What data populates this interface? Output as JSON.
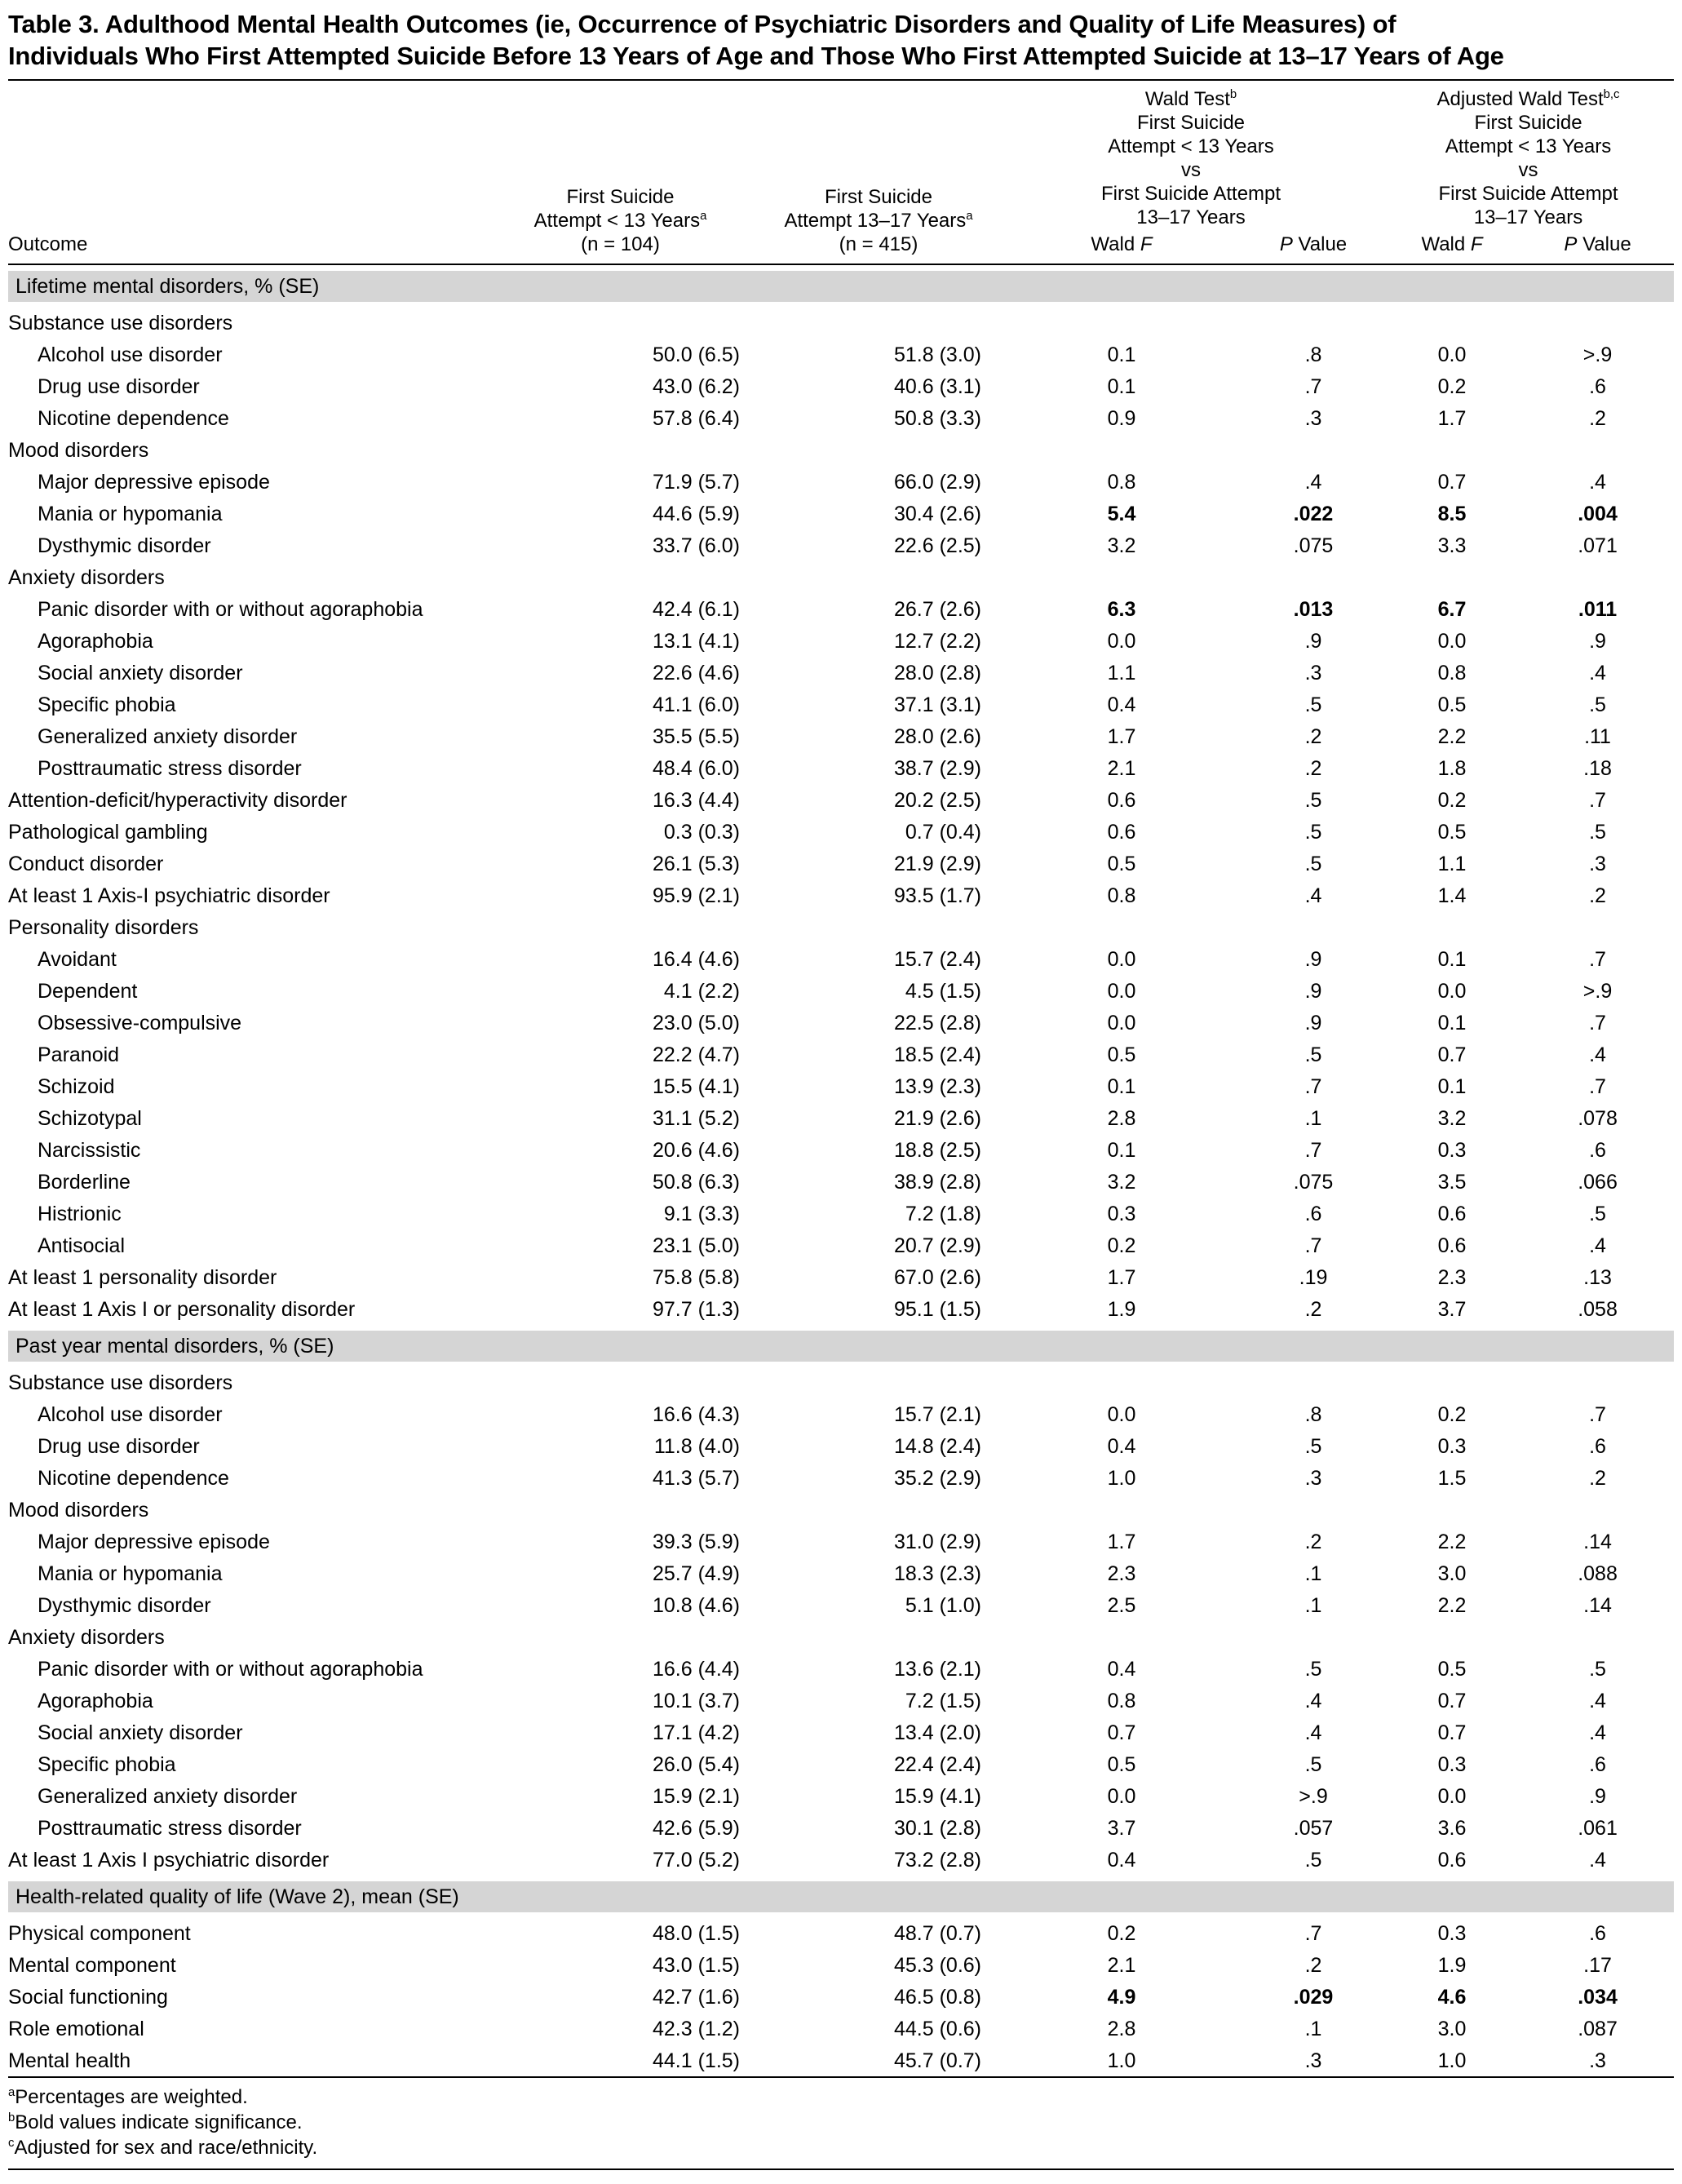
{
  "title": {
    "line1": "Table 3. Adulthood Mental Health Outcomes (ie, Occurrence of Psychiatric Disorders and Quality of Life Measures) of",
    "line2": "Individuals Who First Attempted Suicide Before 13 Years of Age and Those Who First Attempted Suicide at 13–17 Years of Age"
  },
  "header": {
    "outcome": "Outcome",
    "col_lt13": {
      "l1": "First Suicide",
      "l2": "Attempt < 13 Years",
      "sup": "a",
      "l3": "(n = 104)"
    },
    "col_1317": {
      "l1": "First Suicide",
      "l2": "Attempt 13–17 Years",
      "sup": "a",
      "l3": "(n = 415)"
    },
    "wald": {
      "title": "Wald Test",
      "sup": "b",
      "l1": "First Suicide",
      "l2": "Attempt < 13 Years",
      "l3": "vs",
      "l4": "First Suicide Attempt",
      "l5": "13–17 Years"
    },
    "adj_wald": {
      "title": "Adjusted Wald Test",
      "sup": "b,c",
      "l1": "First Suicide",
      "l2": "Attempt < 13 Years",
      "l3": "vs",
      "l4": "First Suicide Attempt",
      "l5": "13–17 Years"
    },
    "stats": {
      "wald": "Wald",
      "f": "F",
      "p": "P",
      "value": "Value"
    }
  },
  "rows": [
    {
      "t": "section",
      "label": "Lifetime mental disorders, % (SE)"
    },
    {
      "t": "sub",
      "label": "Substance use disorders"
    },
    {
      "t": "row",
      "indent": 1,
      "label": "Alcohol use disorder",
      "v": [
        "50.0 (6.5)",
        "51.8 (3.0)",
        "0.1",
        ".8",
        "0.0",
        ">.9"
      ]
    },
    {
      "t": "row",
      "indent": 1,
      "label": "Drug use disorder",
      "v": [
        "43.0 (6.2)",
        "40.6 (3.1)",
        "0.1",
        ".7",
        "0.2",
        ".6"
      ]
    },
    {
      "t": "row",
      "indent": 1,
      "label": "Nicotine dependence",
      "v": [
        "57.8 (6.4)",
        "50.8 (3.3)",
        "0.9",
        ".3",
        "1.7",
        ".2"
      ]
    },
    {
      "t": "sub",
      "label": "Mood disorders"
    },
    {
      "t": "row",
      "indent": 1,
      "label": "Major depressive episode",
      "v": [
        "71.9 (5.7)",
        "66.0 (2.9)",
        "0.8",
        ".4",
        "0.7",
        ".4"
      ]
    },
    {
      "t": "row",
      "indent": 1,
      "bold": true,
      "label": "Mania or hypomania",
      "v": [
        "44.6 (5.9)",
        "30.4 (2.6)",
        "5.4",
        ".022",
        "8.5",
        ".004"
      ]
    },
    {
      "t": "row",
      "indent": 1,
      "label": "Dysthymic disorder",
      "v": [
        "33.7 (6.0)",
        "22.6 (2.5)",
        "3.2",
        ".075",
        "3.3",
        ".071"
      ]
    },
    {
      "t": "sub",
      "label": "Anxiety disorders"
    },
    {
      "t": "row",
      "indent": 1,
      "bold": true,
      "label": "Panic disorder with or without agoraphobia",
      "v": [
        "42.4 (6.1)",
        "26.7 (2.6)",
        "6.3",
        ".013",
        "6.7",
        ".011"
      ]
    },
    {
      "t": "row",
      "indent": 1,
      "label": "Agoraphobia",
      "v": [
        "13.1 (4.1)",
        "12.7 (2.2)",
        "0.0",
        ".9",
        "0.0",
        ".9"
      ]
    },
    {
      "t": "row",
      "indent": 1,
      "label": "Social anxiety disorder",
      "v": [
        "22.6 (4.6)",
        "28.0 (2.8)",
        "1.1",
        ".3",
        "0.8",
        ".4"
      ]
    },
    {
      "t": "row",
      "indent": 1,
      "label": "Specific phobia",
      "v": [
        "41.1 (6.0)",
        "37.1 (3.1)",
        "0.4",
        ".5",
        "0.5",
        ".5"
      ]
    },
    {
      "t": "row",
      "indent": 1,
      "label": "Generalized anxiety disorder",
      "v": [
        "35.5 (5.5)",
        "28.0 (2.6)",
        "1.7",
        ".2",
        "2.2",
        ".11"
      ]
    },
    {
      "t": "row",
      "indent": 1,
      "label": "Posttraumatic stress disorder",
      "v": [
        "48.4 (6.0)",
        "38.7 (2.9)",
        "2.1",
        ".2",
        "1.8",
        ".18"
      ]
    },
    {
      "t": "row",
      "indent": 0,
      "label": "Attention-deficit/hyperactivity disorder",
      "v": [
        "16.3 (4.4)",
        "20.2 (2.5)",
        "0.6",
        ".5",
        "0.2",
        ".7"
      ]
    },
    {
      "t": "row",
      "indent": 0,
      "label": "Pathological gambling",
      "v": [
        "0.3 (0.3)",
        "0.7 (0.4)",
        "0.6",
        ".5",
        "0.5",
        ".5"
      ]
    },
    {
      "t": "row",
      "indent": 0,
      "label": "Conduct disorder",
      "v": [
        "26.1 (5.3)",
        "21.9 (2.9)",
        "0.5",
        ".5",
        "1.1",
        ".3"
      ]
    },
    {
      "t": "row",
      "indent": 0,
      "label": "At least 1 Axis-I psychiatric disorder",
      "v": [
        "95.9 (2.1)",
        "93.5 (1.7)",
        "0.8",
        ".4",
        "1.4",
        ".2"
      ]
    },
    {
      "t": "sub",
      "label": "Personality disorders"
    },
    {
      "t": "row",
      "indent": 1,
      "label": "Avoidant",
      "v": [
        "16.4 (4.6)",
        "15.7 (2.4)",
        "0.0",
        ".9",
        "0.1",
        ".7"
      ]
    },
    {
      "t": "row",
      "indent": 1,
      "label": "Dependent",
      "v": [
        "4.1 (2.2)",
        "4.5 (1.5)",
        "0.0",
        ".9",
        "0.0",
        ">.9"
      ]
    },
    {
      "t": "row",
      "indent": 1,
      "label": "Obsessive-compulsive",
      "v": [
        "23.0 (5.0)",
        "22.5 (2.8)",
        "0.0",
        ".9",
        "0.1",
        ".7"
      ]
    },
    {
      "t": "row",
      "indent": 1,
      "label": "Paranoid",
      "v": [
        "22.2 (4.7)",
        "18.5 (2.4)",
        "0.5",
        ".5",
        "0.7",
        ".4"
      ]
    },
    {
      "t": "row",
      "indent": 1,
      "label": "Schizoid",
      "v": [
        "15.5 (4.1)",
        "13.9 (2.3)",
        "0.1",
        ".7",
        "0.1",
        ".7"
      ]
    },
    {
      "t": "row",
      "indent": 1,
      "label": "Schizotypal",
      "v": [
        "31.1 (5.2)",
        "21.9 (2.6)",
        "2.8",
        ".1",
        "3.2",
        ".078"
      ]
    },
    {
      "t": "row",
      "indent": 1,
      "label": "Narcissistic",
      "v": [
        "20.6 (4.6)",
        "18.8 (2.5)",
        "0.1",
        ".7",
        "0.3",
        ".6"
      ]
    },
    {
      "t": "row",
      "indent": 1,
      "label": "Borderline",
      "v": [
        "50.8 (6.3)",
        "38.9 (2.8)",
        "3.2",
        ".075",
        "3.5",
        ".066"
      ]
    },
    {
      "t": "row",
      "indent": 1,
      "label": "Histrionic",
      "v": [
        "9.1 (3.3)",
        "7.2 (1.8)",
        "0.3",
        ".6",
        "0.6",
        ".5"
      ]
    },
    {
      "t": "row",
      "indent": 1,
      "label": "Antisocial",
      "v": [
        "23.1 (5.0)",
        "20.7 (2.9)",
        "0.2",
        ".7",
        "0.6",
        ".4"
      ]
    },
    {
      "t": "row",
      "indent": 0,
      "label": "At least 1 personality disorder",
      "v": [
        "75.8 (5.8)",
        "67.0 (2.6)",
        "1.7",
        ".19",
        "2.3",
        ".13"
      ]
    },
    {
      "t": "row",
      "indent": 0,
      "label": "At least 1 Axis I or personality disorder",
      "v": [
        "97.7 (1.3)",
        "95.1 (1.5)",
        "1.9",
        ".2",
        "3.7",
        ".058"
      ]
    },
    {
      "t": "section",
      "label": "Past year mental disorders, % (SE)"
    },
    {
      "t": "sub",
      "label": "Substance use disorders"
    },
    {
      "t": "row",
      "indent": 1,
      "label": "Alcohol use disorder",
      "v": [
        "16.6 (4.3)",
        "15.7 (2.1)",
        "0.0",
        ".8",
        "0.2",
        ".7"
      ]
    },
    {
      "t": "row",
      "indent": 1,
      "label": "Drug use disorder",
      "v": [
        "11.8 (4.0)",
        "14.8 (2.4)",
        "0.4",
        ".5",
        "0.3",
        ".6"
      ]
    },
    {
      "t": "row",
      "indent": 1,
      "label": "Nicotine dependence",
      "v": [
        "41.3 (5.7)",
        "35.2 (2.9)",
        "1.0",
        ".3",
        "1.5",
        ".2"
      ]
    },
    {
      "t": "sub",
      "label": "Mood disorders"
    },
    {
      "t": "row",
      "indent": 1,
      "label": "Major depressive episode",
      "v": [
        "39.3 (5.9)",
        "31.0 (2.9)",
        "1.7",
        ".2",
        "2.2",
        ".14"
      ]
    },
    {
      "t": "row",
      "indent": 1,
      "label": "Mania or hypomania",
      "v": [
        "25.7 (4.9)",
        "18.3 (2.3)",
        "2.3",
        ".1",
        "3.0",
        ".088"
      ]
    },
    {
      "t": "row",
      "indent": 1,
      "label": "Dysthymic disorder",
      "v": [
        "10.8 (4.6)",
        "5.1 (1.0)",
        "2.5",
        ".1",
        "2.2",
        ".14"
      ]
    },
    {
      "t": "sub",
      "label": "Anxiety disorders"
    },
    {
      "t": "row",
      "indent": 1,
      "label": "Panic disorder with or without agoraphobia",
      "v": [
        "16.6 (4.4)",
        "13.6 (2.1)",
        "0.4",
        ".5",
        "0.5",
        ".5"
      ]
    },
    {
      "t": "row",
      "indent": 1,
      "label": "Agoraphobia",
      "v": [
        "10.1 (3.7)",
        "7.2 (1.5)",
        "0.8",
        ".4",
        "0.7",
        ".4"
      ]
    },
    {
      "t": "row",
      "indent": 1,
      "label": "Social anxiety disorder",
      "v": [
        "17.1 (4.2)",
        "13.4 (2.0)",
        "0.7",
        ".4",
        "0.7",
        ".4"
      ]
    },
    {
      "t": "row",
      "indent": 1,
      "label": "Specific phobia",
      "v": [
        "26.0 (5.4)",
        "22.4 (2.4)",
        "0.5",
        ".5",
        "0.3",
        ".6"
      ]
    },
    {
      "t": "row",
      "indent": 1,
      "label": "Generalized anxiety disorder",
      "v": [
        "15.9 (2.1)",
        "15.9 (4.1)",
        "0.0",
        ">.9",
        "0.0",
        ".9"
      ]
    },
    {
      "t": "row",
      "indent": 1,
      "label": "Posttraumatic stress disorder",
      "v": [
        "42.6 (5.9)",
        "30.1 (2.8)",
        "3.7",
        ".057",
        "3.6",
        ".061"
      ]
    },
    {
      "t": "row",
      "indent": 0,
      "label": "At least 1 Axis I psychiatric disorder",
      "v": [
        "77.0 (5.2)",
        "73.2 (2.8)",
        "0.4",
        ".5",
        "0.6",
        ".4"
      ]
    },
    {
      "t": "section",
      "label": "Health-related quality of life (Wave 2), mean (SE)"
    },
    {
      "t": "row",
      "indent": 0,
      "label": "Physical component",
      "v": [
        "48.0 (1.5)",
        "48.7 (0.7)",
        "0.2",
        ".7",
        "0.3",
        ".6"
      ]
    },
    {
      "t": "row",
      "indent": 0,
      "label": "Mental component",
      "v": [
        "43.0 (1.5)",
        "45.3 (0.6)",
        "2.1",
        ".2",
        "1.9",
        ".17"
      ]
    },
    {
      "t": "row",
      "indent": 0,
      "bold": true,
      "label": "Social functioning",
      "v": [
        "42.7 (1.6)",
        "46.5 (0.8)",
        "4.9",
        ".029",
        "4.6",
        ".034"
      ]
    },
    {
      "t": "row",
      "indent": 0,
      "label": "Role emotional",
      "v": [
        "42.3 (1.2)",
        "44.5 (0.6)",
        "2.8",
        ".1",
        "3.0",
        ".087"
      ]
    },
    {
      "t": "row",
      "indent": 0,
      "label": "Mental health",
      "v": [
        "44.1 (1.5)",
        "45.7 (0.7)",
        "1.0",
        ".3",
        "1.0",
        ".3"
      ]
    }
  ],
  "footnotes": [
    {
      "sup": "a",
      "text": "Percentages are weighted."
    },
    {
      "sup": "b",
      "text": "Bold values indicate significance."
    },
    {
      "sup": "c",
      "text": "Adjusted for sex and race/ethnicity."
    }
  ]
}
